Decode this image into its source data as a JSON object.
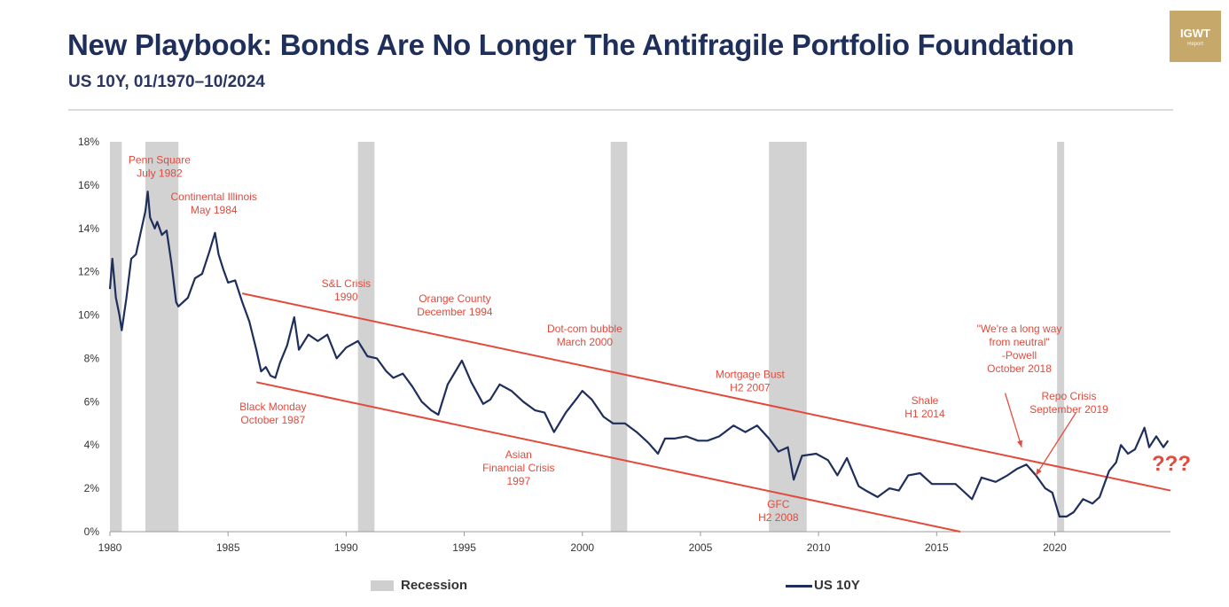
{
  "header": {
    "title": "New Playbook: Bonds Are No Longer The Antifragile Portfolio Foundation",
    "subtitle": "US 10Y, 01/1970–10/2024",
    "logo_text": "IGWT",
    "logo_subtext": "Report"
  },
  "colors": {
    "series": "#1f2f5c",
    "annotation": "#e34a3c",
    "recession": "#d2d2d2",
    "axis_text": "#333333"
  },
  "chart_data": {
    "type": "line",
    "xlim": [
      1980,
      2024.9
    ],
    "ylim": [
      0,
      18
    ],
    "x_ticks": [
      1980,
      1985,
      1990,
      1995,
      2000,
      2005,
      2010,
      2015,
      2020
    ],
    "x_tick_labels": [
      "1980",
      "1985",
      "1990",
      "1995",
      "2000",
      "2005",
      "2010",
      "2015",
      "2020"
    ],
    "y_ticks": [
      0,
      2,
      4,
      6,
      8,
      10,
      12,
      14,
      16,
      18
    ],
    "y_tick_labels": [
      "0%",
      "2%",
      "4%",
      "6%",
      "8%",
      "10%",
      "12%",
      "14%",
      "16%",
      "18%"
    ],
    "grid": false,
    "legend": {
      "placement": "bottom",
      "recession_label": "Recession",
      "series_label": "US 10Y"
    },
    "recessions": [
      [
        1980.0,
        1980.5
      ],
      [
        1981.5,
        1982.9
      ],
      [
        1990.5,
        1991.2
      ],
      [
        2001.2,
        2001.9
      ],
      [
        2007.9,
        2009.5
      ],
      [
        2020.1,
        2020.4
      ]
    ],
    "series": [
      {
        "name": "US 10Y",
        "x": [
          1980.0,
          1980.1,
          1980.25,
          1980.4,
          1980.5,
          1980.7,
          1980.9,
          1981.1,
          1981.3,
          1981.5,
          1981.6,
          1981.7,
          1981.9,
          1982.0,
          1982.2,
          1982.4,
          1982.6,
          1982.8,
          1982.9,
          1983.0,
          1983.3,
          1983.6,
          1983.9,
          1984.2,
          1984.45,
          1984.6,
          1984.8,
          1985.0,
          1985.3,
          1985.6,
          1985.9,
          1986.2,
          1986.4,
          1986.6,
          1986.8,
          1987.0,
          1987.2,
          1987.5,
          1987.8,
          1988.0,
          1988.4,
          1988.8,
          1989.2,
          1989.6,
          1990.0,
          1990.5,
          1990.9,
          1991.3,
          1991.7,
          1992.0,
          1992.4,
          1992.8,
          1993.2,
          1993.6,
          1993.9,
          1994.3,
          1994.9,
          1995.3,
          1995.8,
          1996.1,
          1996.5,
          1997.0,
          1997.5,
          1998.0,
          1998.4,
          1998.8,
          1999.3,
          1999.8,
          2000.0,
          2000.4,
          2000.9,
          2001.3,
          2001.8,
          2002.3,
          2002.8,
          2003.2,
          2003.5,
          2003.9,
          2004.4,
          2004.9,
          2005.3,
          2005.8,
          2006.4,
          2006.9,
          2007.4,
          2007.9,
          2008.3,
          2008.7,
          2008.95,
          2009.3,
          2009.9,
          2010.4,
          2010.8,
          2011.2,
          2011.7,
          2012.0,
          2012.5,
          2013.0,
          2013.4,
          2013.8,
          2014.3,
          2014.8,
          2015.3,
          2015.8,
          2016.2,
          2016.5,
          2016.9,
          2017.5,
          2018.0,
          2018.4,
          2018.8,
          2019.2,
          2019.6,
          2019.9,
          2020.2,
          2020.5,
          2020.8,
          2021.2,
          2021.6,
          2021.9,
          2022.3,
          2022.6,
          2022.8,
          2023.1,
          2023.4,
          2023.8,
          2024.0,
          2024.3,
          2024.6,
          2024.8
        ],
        "values": [
          11.2,
          12.6,
          10.8,
          10.0,
          9.3,
          10.8,
          12.6,
          12.8,
          13.8,
          14.8,
          15.7,
          14.5,
          14.0,
          14.3,
          13.7,
          13.9,
          12.4,
          10.6,
          10.4,
          10.5,
          10.8,
          11.7,
          11.9,
          12.9,
          13.8,
          12.8,
          12.1,
          11.5,
          11.6,
          10.6,
          9.7,
          8.4,
          7.4,
          7.6,
          7.2,
          7.1,
          7.8,
          8.6,
          9.9,
          8.4,
          9.1,
          8.8,
          9.1,
          8.0,
          8.5,
          8.8,
          8.1,
          8.0,
          7.4,
          7.1,
          7.3,
          6.7,
          6.0,
          5.6,
          5.4,
          6.8,
          7.9,
          6.9,
          5.9,
          6.1,
          6.8,
          6.5,
          6.0,
          5.6,
          5.5,
          4.6,
          5.5,
          6.2,
          6.5,
          6.1,
          5.3,
          5.0,
          5.0,
          4.6,
          4.1,
          3.6,
          4.3,
          4.3,
          4.4,
          4.2,
          4.2,
          4.4,
          4.9,
          4.6,
          4.9,
          4.3,
          3.7,
          3.9,
          2.4,
          3.5,
          3.6,
          3.3,
          2.6,
          3.4,
          2.1,
          1.9,
          1.6,
          2.0,
          1.9,
          2.6,
          2.7,
          2.2,
          2.2,
          2.2,
          1.8,
          1.5,
          2.5,
          2.3,
          2.6,
          2.9,
          3.1,
          2.6,
          2.0,
          1.8,
          0.7,
          0.7,
          0.9,
          1.5,
          1.3,
          1.6,
          2.8,
          3.2,
          4.0,
          3.6,
          3.8,
          4.8,
          3.9,
          4.4,
          3.9,
          4.2
        ]
      }
    ],
    "trend_lines": [
      {
        "from": [
          1985.6,
          11.0
        ],
        "to": [
          2024.9,
          1.9
        ]
      },
      {
        "from": [
          1986.2,
          6.9
        ],
        "to": [
          2016.0,
          0.0
        ]
      }
    ],
    "annotations": [
      {
        "lines": [
          "Penn Square",
          "July 1982"
        ],
        "x": 1982.1,
        "y": 17.0
      },
      {
        "lines": [
          "Continental Illinois",
          "May 1984"
        ],
        "x": 1984.4,
        "y": 15.3
      },
      {
        "lines": [
          "S&L Crisis",
          "1990"
        ],
        "x": 1990.0,
        "y": 11.3
      },
      {
        "lines": [
          "Orange County",
          "December 1994"
        ],
        "x": 1994.6,
        "y": 10.6
      },
      {
        "lines": [
          "Dot-com bubble",
          "March 2000"
        ],
        "x": 2000.1,
        "y": 9.2
      },
      {
        "lines": [
          "Mortgage Bust",
          "H2 2007"
        ],
        "x": 2007.1,
        "y": 7.1
      },
      {
        "lines": [
          "Shale",
          "H1 2014"
        ],
        "x": 2014.5,
        "y": 5.9
      },
      {
        "lines": [
          "\"We're a long way",
          "from neutral\"",
          "-Powell",
          "October 2018"
        ],
        "x": 2018.5,
        "y": 9.2
      },
      {
        "lines": [
          "Repo Crisis",
          "September 2019"
        ],
        "x": 2020.6,
        "y": 6.1
      },
      {
        "lines": [
          "Black Monday",
          "October 1987"
        ],
        "x": 1986.9,
        "y": 5.6
      },
      {
        "lines": [
          "Asian",
          "Financial Crisis",
          "1997"
        ],
        "x": 1997.3,
        "y": 3.4
      },
      {
        "lines": [
          "GFC",
          "H2 2008"
        ],
        "x": 2008.3,
        "y": 1.1
      }
    ],
    "question_marks": "???"
  }
}
